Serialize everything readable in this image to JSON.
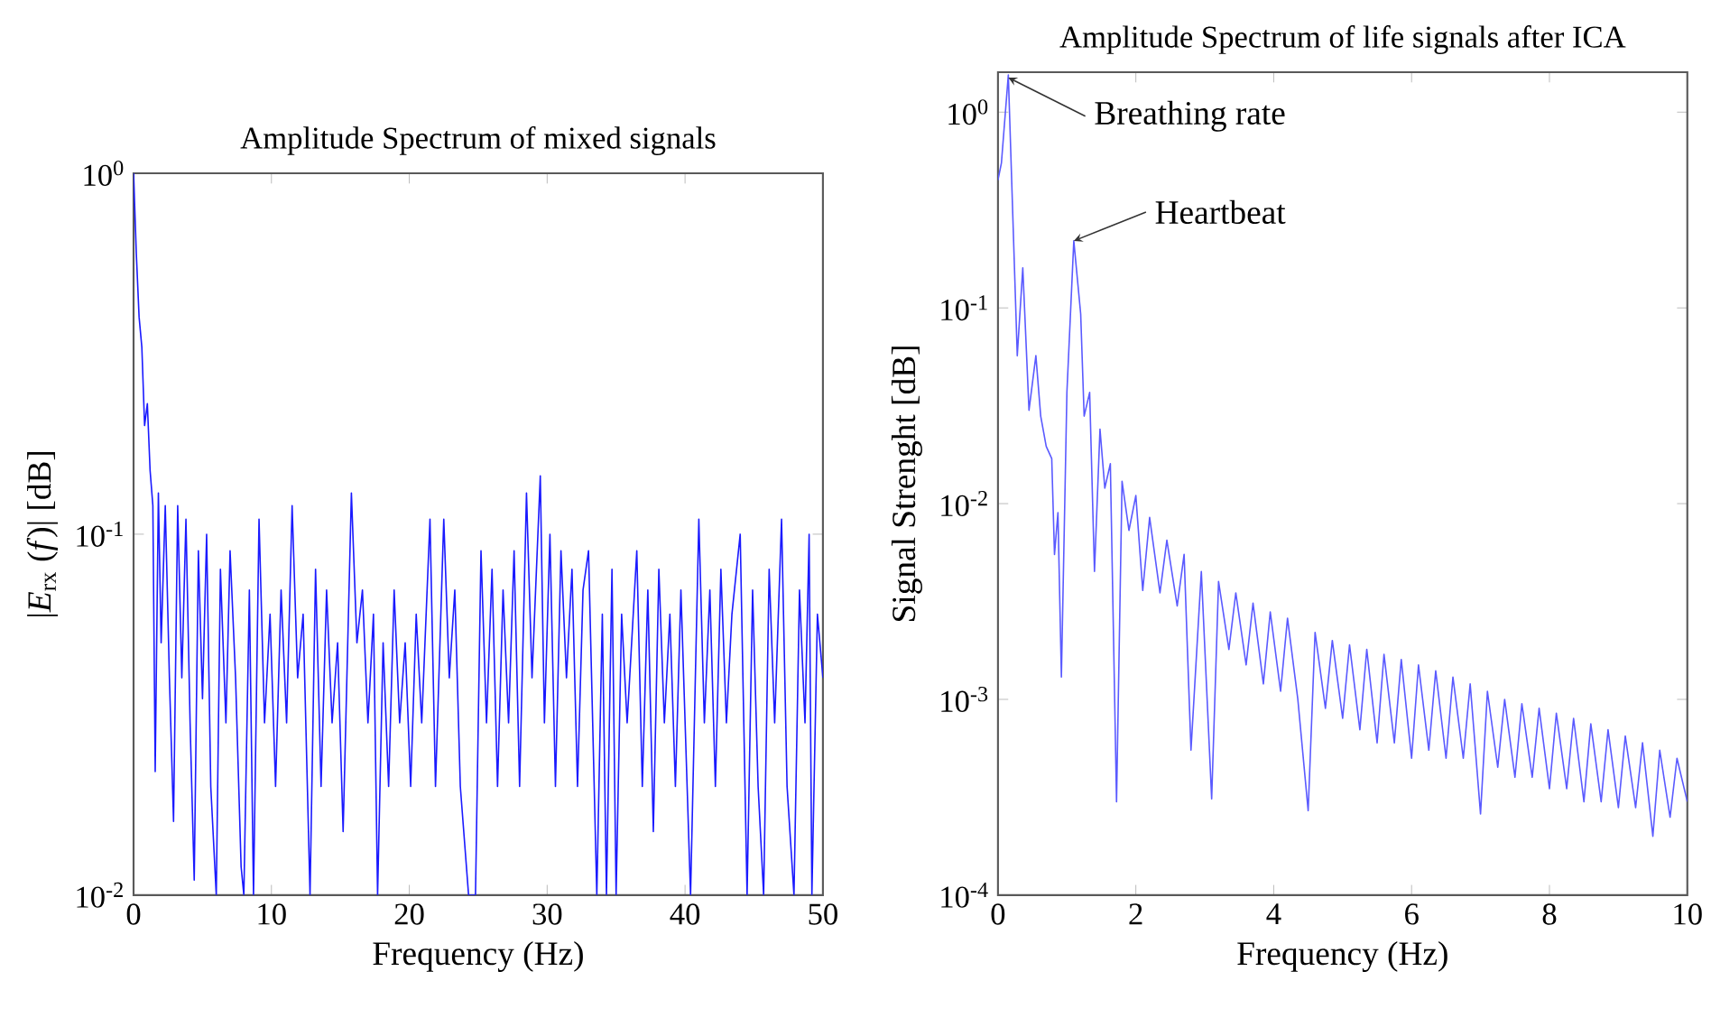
{
  "chart_data": [
    {
      "type": "line",
      "title": "Amplitude Spectrum of mixed signals",
      "xlabel": "Frequency (Hz)",
      "ylabel": "|*E*$_{rx}$ (*f*)| [dB]",
      "log": "y",
      "xlim": [
        0,
        50
      ],
      "ylim": [
        0.01,
        1
      ],
      "xticks": [
        0,
        10,
        20,
        30,
        40,
        50
      ],
      "yticks": [
        {
          "value": 0.01,
          "label": "10$^{-2}$"
        },
        {
          "value": 0.1,
          "label": "10$^{-1}$"
        },
        {
          "value": 1,
          "label": "10$^{0}$"
        }
      ],
      "x": [
        0,
        0.2,
        0.4,
        0.6,
        0.8,
        1.0,
        1.2,
        1.4,
        1.57,
        1.8,
        2.0,
        2.3,
        2.6,
        2.9,
        3.2,
        3.5,
        3.8,
        4.1,
        4.4,
        4.7,
        5.0,
        5.3,
        5.6,
        6.0,
        6.3,
        6.7,
        7.0,
        7.4,
        7.8,
        8.0,
        8.4,
        8.7,
        9.1,
        9.5,
        9.9,
        10.3,
        10.7,
        11.1,
        11.5,
        11.9,
        12.3,
        12.8,
        13.2,
        13.6,
        14.0,
        14.4,
        14.8,
        15.2,
        15.8,
        16.2,
        16.6,
        17.0,
        17.4,
        17.7,
        18.1,
        18.5,
        18.9,
        19.3,
        19.7,
        20.1,
        20.5,
        20.9,
        21.5,
        21.9,
        22.5,
        22.9,
        23.3,
        23.7,
        24.3,
        24.8,
        25.2,
        25.6,
        26.0,
        26.4,
        26.8,
        27.2,
        27.6,
        28.0,
        28.5,
        28.9,
        29.5,
        29.8,
        30.2,
        30.6,
        31.0,
        31.4,
        31.8,
        32.2,
        32.6,
        33.0,
        33.6,
        34.0,
        34.3,
        34.7,
        35.0,
        35.4,
        35.8,
        36.5,
        36.9,
        37.3,
        37.7,
        38.1,
        38.5,
        38.9,
        39.3,
        39.7,
        40.4,
        41.0,
        41.4,
        41.8,
        42.2,
        42.6,
        43.0,
        43.4,
        44.0,
        44.5,
        44.9,
        45.3,
        45.7,
        46.1,
        46.5,
        47.0,
        47.4,
        47.9,
        48.3,
        48.7,
        49.0,
        49.2,
        49.6,
        50.0
      ],
      "series": [
        {
          "color": "#1a1aff",
          "values": [
            1.0,
            0.6,
            0.4,
            0.33,
            0.2,
            0.23,
            0.15,
            0.12,
            0.022,
            0.13,
            0.05,
            0.12,
            0.04,
            0.016,
            0.12,
            0.04,
            0.11,
            0.03,
            0.011,
            0.09,
            0.035,
            0.1,
            0.02,
            0.01,
            0.08,
            0.03,
            0.09,
            0.04,
            0.012,
            0.01,
            0.07,
            0.01,
            0.11,
            0.03,
            0.06,
            0.02,
            0.07,
            0.03,
            0.12,
            0.04,
            0.06,
            0.01,
            0.08,
            0.02,
            0.07,
            0.03,
            0.05,
            0.015,
            0.13,
            0.05,
            0.07,
            0.03,
            0.06,
            0.01,
            0.05,
            0.02,
            0.07,
            0.03,
            0.05,
            0.02,
            0.06,
            0.03,
            0.11,
            0.02,
            0.11,
            0.04,
            0.07,
            0.02,
            0.01,
            0.01,
            0.09,
            0.03,
            0.08,
            0.02,
            0.07,
            0.03,
            0.09,
            0.02,
            0.13,
            0.04,
            0.145,
            0.03,
            0.1,
            0.02,
            0.09,
            0.04,
            0.08,
            0.02,
            0.07,
            0.09,
            0.01,
            0.06,
            0.01,
            0.08,
            0.01,
            0.06,
            0.03,
            0.09,
            0.02,
            0.07,
            0.015,
            0.08,
            0.03,
            0.06,
            0.02,
            0.07,
            0.01,
            0.11,
            0.03,
            0.07,
            0.02,
            0.08,
            0.03,
            0.06,
            0.1,
            0.01,
            0.07,
            0.02,
            0.01,
            0.08,
            0.03,
            0.11,
            0.02,
            0.01,
            0.07,
            0.03,
            0.1,
            0.01,
            0.06,
            0.04
          ]
        }
      ]
    },
    {
      "type": "line",
      "title": "Amplitude Spectrum of life signals after ICA",
      "xlabel": "Frequency (Hz)",
      "ylabel": "Signal Strenght [dB]",
      "log": "y",
      "xlim": [
        0,
        10
      ],
      "ylim": [
        0.0001,
        1.6
      ],
      "xticks": [
        0,
        2,
        4,
        6,
        8,
        10
      ],
      "yticks": [
        {
          "value": 0.0001,
          "label": "10$^{-4}$"
        },
        {
          "value": 0.001,
          "label": "10$^{-3}$"
        },
        {
          "value": 0.01,
          "label": "10$^{-2}$"
        },
        {
          "value": 0.1,
          "label": "10$^{-1}$"
        },
        {
          "value": 1,
          "label": "10$^{0}$"
        }
      ],
      "annotations": [
        {
          "text": "Breathing rate",
          "x": 0.15,
          "y": 1.5
        },
        {
          "text": "Heartbeat",
          "x": 1.1,
          "y": 0.22
        }
      ],
      "x": [
        0,
        0.05,
        0.15,
        0.28,
        0.36,
        0.45,
        0.55,
        0.62,
        0.7,
        0.78,
        0.82,
        0.87,
        0.92,
        1.0,
        1.1,
        1.2,
        1.25,
        1.33,
        1.4,
        1.48,
        1.55,
        1.63,
        1.72,
        1.8,
        1.9,
        2.0,
        2.1,
        2.2,
        2.35,
        2.45,
        2.6,
        2.7,
        2.8,
        2.95,
        3.1,
        3.2,
        3.35,
        3.45,
        3.6,
        3.7,
        3.85,
        3.95,
        4.1,
        4.2,
        4.35,
        4.5,
        4.6,
        4.75,
        4.85,
        5.0,
        5.1,
        5.25,
        5.35,
        5.5,
        5.6,
        5.75,
        5.85,
        6.0,
        6.1,
        6.25,
        6.35,
        6.5,
        6.6,
        6.75,
        6.85,
        7.0,
        7.1,
        7.25,
        7.35,
        7.5,
        7.6,
        7.75,
        7.85,
        8.0,
        8.1,
        8.25,
        8.35,
        8.5,
        8.6,
        8.75,
        8.85,
        9.0,
        9.1,
        9.25,
        9.35,
        9.5,
        9.6,
        9.75,
        9.85,
        10.0
      ],
      "series": [
        {
          "color": "#5a5aff",
          "values": [
            0.45,
            0.55,
            1.55,
            0.057,
            0.16,
            0.03,
            0.057,
            0.028,
            0.0196,
            0.017,
            0.0055,
            0.009,
            0.0013,
            0.037,
            0.22,
            0.093,
            0.028,
            0.037,
            0.0045,
            0.024,
            0.012,
            0.016,
            0.0003,
            0.013,
            0.0073,
            0.011,
            0.0036,
            0.0085,
            0.0035,
            0.0065,
            0.003,
            0.0055,
            0.00055,
            0.0045,
            0.00031,
            0.004,
            0.0018,
            0.0035,
            0.0015,
            0.0031,
            0.0012,
            0.0028,
            0.0011,
            0.0026,
            0.001,
            0.00027,
            0.0022,
            0.0009,
            0.002,
            0.0008,
            0.0019,
            0.0007,
            0.0018,
            0.0006,
            0.0017,
            0.0006,
            0.0016,
            0.0005,
            0.0015,
            0.00055,
            0.0014,
            0.0005,
            0.0013,
            0.0005,
            0.0012,
            0.00026,
            0.0011,
            0.00045,
            0.001,
            0.0004,
            0.00095,
            0.0004,
            0.0009,
            0.00035,
            0.00085,
            0.00035,
            0.0008,
            0.0003,
            0.00075,
            0.0003,
            0.0007,
            0.00028,
            0.00065,
            0.00028,
            0.0006,
            0.0002,
            0.00055,
            0.00025,
            0.0005,
            0.0003
          ]
        }
      ]
    }
  ]
}
